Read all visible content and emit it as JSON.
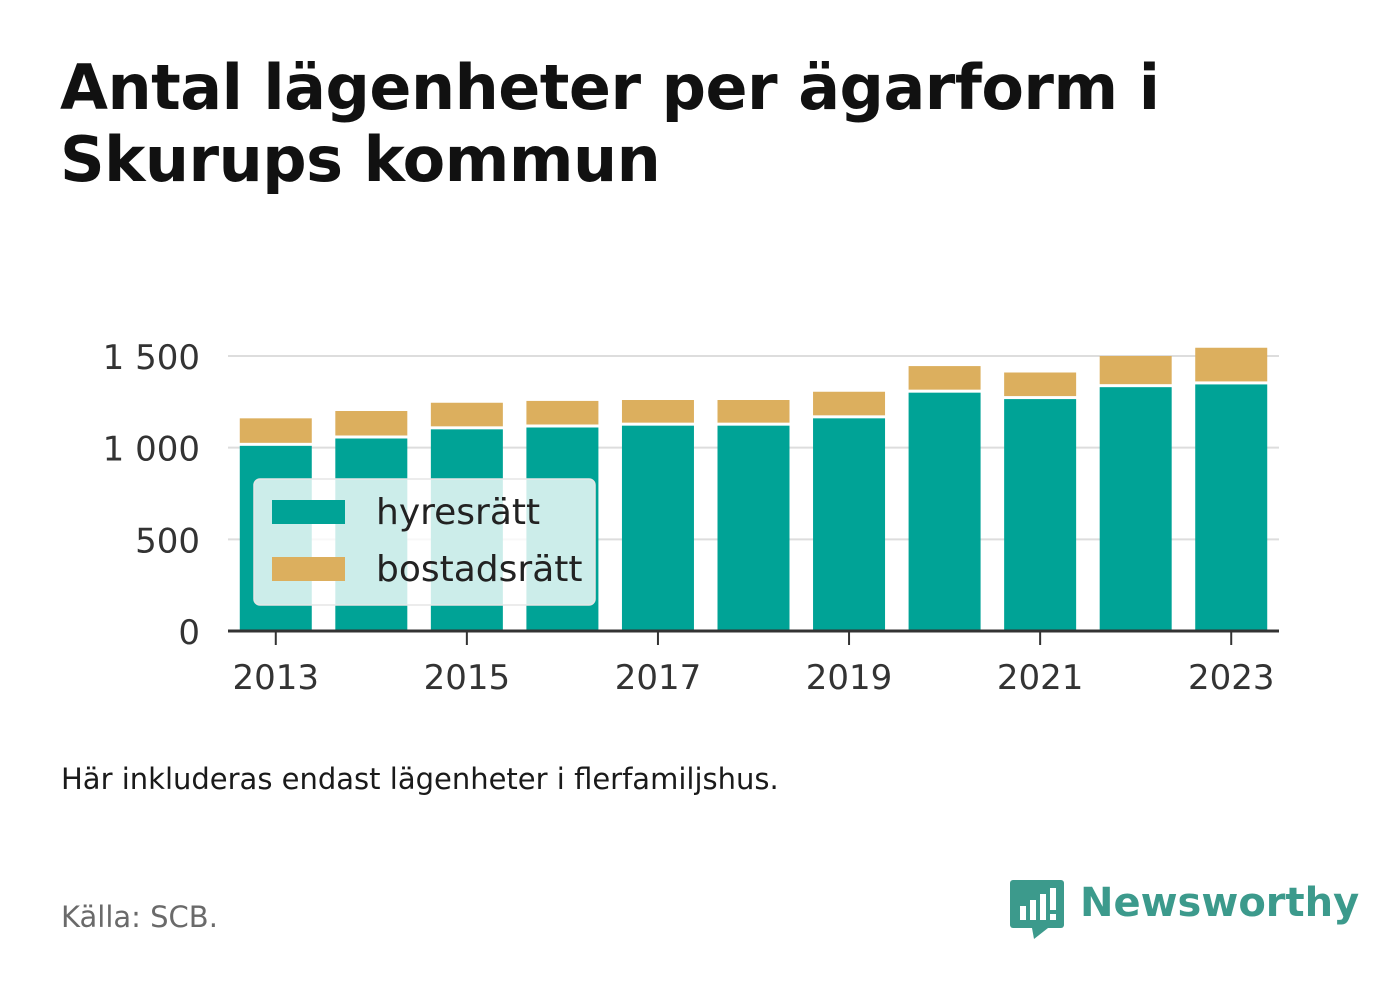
{
  "title": "Antal lägenheter per ägarform i Skurups kommun",
  "note": "Här inkluderas endast lägenheter i flerfamiljshus.",
  "source": "Källa: SCB.",
  "brand": {
    "name": "Newsworthy",
    "icon": "newsworthy-logo-icon",
    "color": "#3c9a8c"
  },
  "colors": {
    "hyresratt": "#00a396",
    "bostadsratt": "#dcaf5e",
    "grid": "#dddddd",
    "axis": "#333333"
  },
  "chart_data": {
    "type": "bar",
    "stacked": true,
    "categories": [
      2013,
      2014,
      2015,
      2016,
      2017,
      2018,
      2019,
      2020,
      2021,
      2022,
      2023
    ],
    "x_tick_labels": [
      "2013",
      "2015",
      "2017",
      "2019",
      "2021",
      "2023"
    ],
    "y_ticks": [
      0,
      500,
      1000,
      1500
    ],
    "y_tick_labels": [
      "0",
      "500",
      "1 000",
      "1 500"
    ],
    "ylim": [
      0,
      1560
    ],
    "grid": true,
    "legend_position": "inside-left",
    "series": [
      {
        "name": "hyresrätt",
        "color": "#00a396",
        "values": [
          1010,
          1050,
          1100,
          1110,
          1120,
          1120,
          1160,
          1300,
          1265,
          1330,
          1345
        ]
      },
      {
        "name": "bostadsrätt",
        "color": "#dcaf5e",
        "values": [
          150,
          150,
          145,
          145,
          140,
          140,
          145,
          145,
          145,
          170,
          200
        ]
      }
    ]
  }
}
